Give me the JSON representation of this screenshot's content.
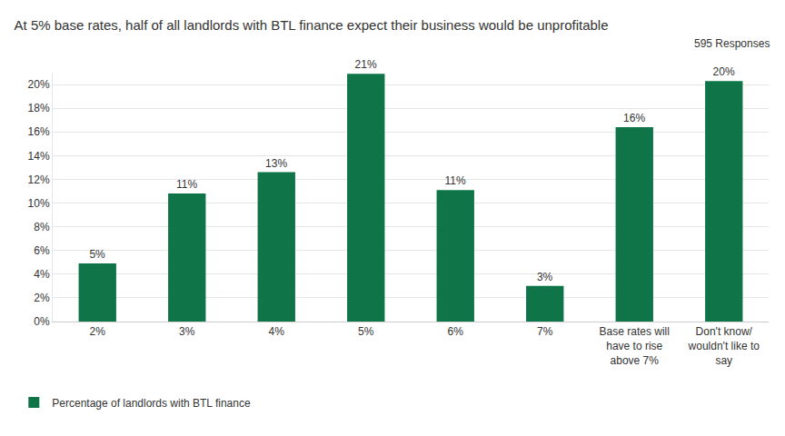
{
  "chart_data": {
    "type": "bar",
    "title": "At 5% base rates, half of all landlords with BTL finance expect their business would be unprofitable",
    "subtitle": "595 Responses",
    "categories": [
      "2%",
      "3%",
      "4%",
      "5%",
      "6%",
      "7%",
      "Base rates will have to rise above 7%",
      "Don't know/ wouldn't like to say"
    ],
    "series": [
      {
        "name": "Percentage of landlords with BTL finance",
        "color": "#0f7549",
        "values": [
          4.9,
          10.8,
          12.6,
          20.9,
          11.1,
          3.0,
          16.4,
          20.3
        ],
        "value_labels": [
          "5%",
          "11%",
          "13%",
          "21%",
          "11%",
          "3%",
          "16%",
          "20%"
        ]
      }
    ],
    "ylim": [
      0,
      21
    ],
    "yticks": [
      {
        "value": 0,
        "label": "0%"
      },
      {
        "value": 2,
        "label": "2%"
      },
      {
        "value": 4,
        "label": "4%"
      },
      {
        "value": 6,
        "label": "6%"
      },
      {
        "value": 8,
        "label": "8%"
      },
      {
        "value": 10,
        "label": "10%"
      },
      {
        "value": 12,
        "label": "12%"
      },
      {
        "value": 14,
        "label": "14%"
      },
      {
        "value": 16,
        "label": "16%"
      },
      {
        "value": 18,
        "label": "18%"
      },
      {
        "value": 20,
        "label": "20%"
      }
    ],
    "grid": true,
    "data_labels": true,
    "legend": "bottom left"
  }
}
